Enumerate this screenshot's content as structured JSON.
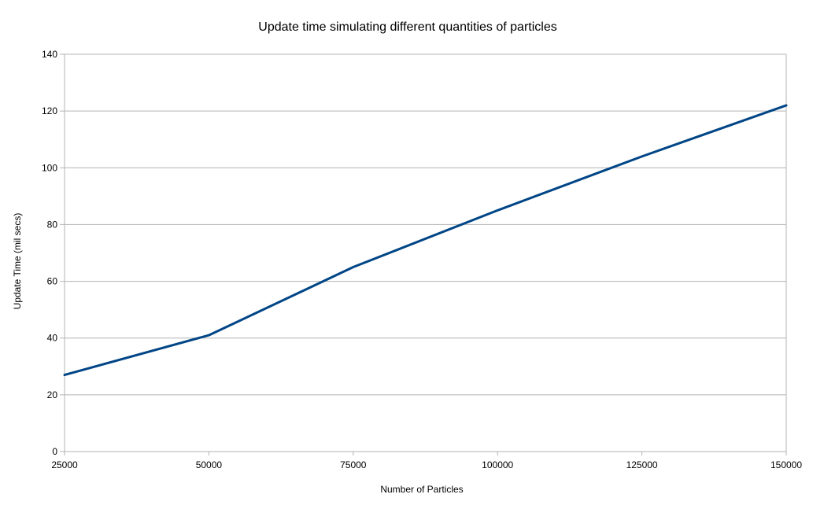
{
  "chart_data": {
    "type": "line",
    "title": "Update time simulating different quantities of particles",
    "xlabel": "Number of Particles",
    "ylabel": "Update Time (mil secs)",
    "x": [
      25000,
      50000,
      75000,
      100000,
      125000,
      150000
    ],
    "x_tick_labels": [
      "25000",
      "50000",
      "75000",
      "100000",
      "125000",
      "150000"
    ],
    "y_tick_labels": [
      "0",
      "20",
      "40",
      "60",
      "80",
      "100",
      "120",
      "140"
    ],
    "xlim": [
      25000,
      150000
    ],
    "ylim": [
      0,
      140
    ],
    "y_ticks": [
      0,
      20,
      40,
      60,
      80,
      100,
      120,
      140
    ],
    "grid": true,
    "legend": "none",
    "series": [
      {
        "values": [
          27,
          41,
          65,
          85,
          104,
          122
        ],
        "color": "#004586"
      }
    ],
    "colors": {
      "grid": "#b3b3b3",
      "axis": "#b3b3b3",
      "line": "#004586"
    }
  }
}
